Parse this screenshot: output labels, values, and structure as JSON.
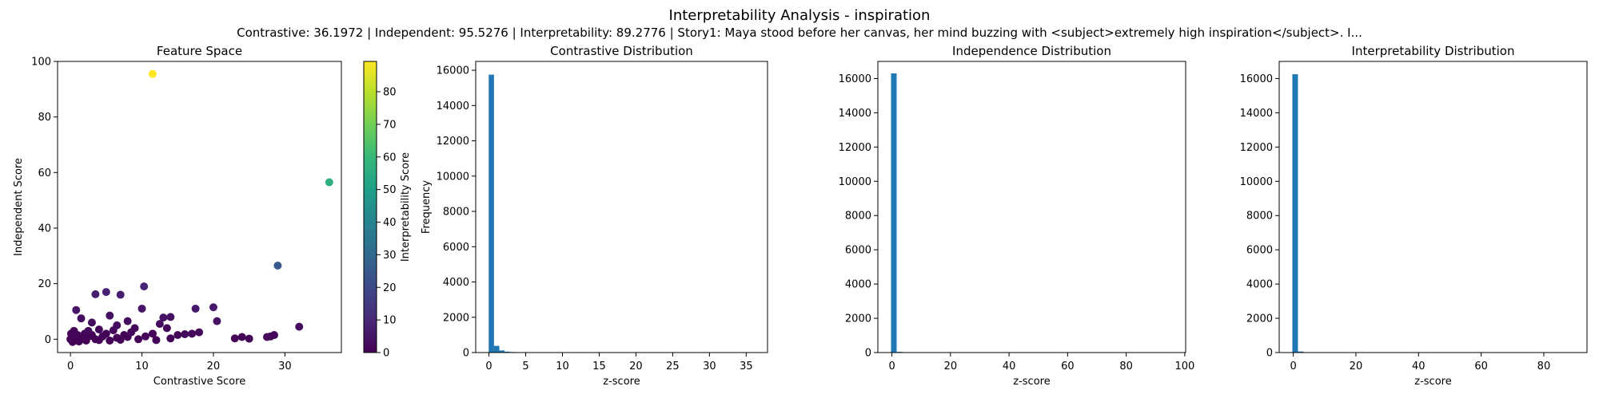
{
  "figure": {
    "title": "Interpretability Analysis - inspiration",
    "subtitle": "Contrastive: 36.1972 | Independent: 95.5276 | Interpretability: 89.2776 | Story1: Maya stood before her canvas, her mind buzzing with <subject>extremely high inspiration</subject>. I..."
  },
  "colors": {
    "bar": "#1f77b4",
    "viridis": [
      "#440154",
      "#482878",
      "#3e4989",
      "#31688e",
      "#26828e",
      "#1f9e89",
      "#35b779",
      "#6ece58",
      "#b5de2b",
      "#fde725"
    ]
  },
  "chart_data": [
    {
      "type": "scatter",
      "title": "Feature Space",
      "xlabel": "Contrastive Score",
      "ylabel": "Independent Score",
      "xlim": [
        -1.8,
        37.9
      ],
      "ylim": [
        -4.8,
        100
      ],
      "xticks": [
        0,
        10,
        20,
        30
      ],
      "yticks": [
        0,
        20,
        40,
        60,
        80,
        100
      ],
      "colorbar": {
        "label": "Interpretability Score",
        "range": [
          0,
          89.3
        ],
        "ticks": [
          0,
          10,
          20,
          30,
          40,
          50,
          60,
          70,
          80
        ]
      },
      "points": [
        {
          "x": 11.5,
          "y": 95.5,
          "c": 89.3
        },
        {
          "x": 36.2,
          "y": 56.5,
          "c": 56
        },
        {
          "x": 29.0,
          "y": 26.5,
          "c": 25
        },
        {
          "x": 10.3,
          "y": 19.0,
          "c": 9
        },
        {
          "x": 5.0,
          "y": 17.0,
          "c": 8
        },
        {
          "x": 3.5,
          "y": 16.2,
          "c": 7
        },
        {
          "x": 7.0,
          "y": 16.0,
          "c": 7
        },
        {
          "x": 20.0,
          "y": 11.5,
          "c": 6
        },
        {
          "x": 17.5,
          "y": 11.0,
          "c": 6
        },
        {
          "x": 10.0,
          "y": 11.0,
          "c": 5
        },
        {
          "x": 0.8,
          "y": 10.5,
          "c": 5
        },
        {
          "x": 20.5,
          "y": 6.5,
          "c": 4
        },
        {
          "x": 14.0,
          "y": 8.0,
          "c": 4
        },
        {
          "x": 13.0,
          "y": 7.8,
          "c": 4
        },
        {
          "x": 5.5,
          "y": 8.5,
          "c": 4
        },
        {
          "x": 1.5,
          "y": 7.5,
          "c": 3
        },
        {
          "x": 8.0,
          "y": 6.5,
          "c": 3
        },
        {
          "x": 12.5,
          "y": 5.5,
          "c": 3
        },
        {
          "x": 3.0,
          "y": 6.0,
          "c": 3
        },
        {
          "x": 6.5,
          "y": 5.0,
          "c": 3
        },
        {
          "x": 32.0,
          "y": 4.5,
          "c": 3
        },
        {
          "x": 9.0,
          "y": 4.0,
          "c": 2
        },
        {
          "x": 13.5,
          "y": 4.0,
          "c": 2
        },
        {
          "x": 4.0,
          "y": 3.5,
          "c": 2
        },
        {
          "x": 2.5,
          "y": 3.0,
          "c": 2
        },
        {
          "x": 6.0,
          "y": 3.2,
          "c": 2
        },
        {
          "x": 18.0,
          "y": 2.5,
          "c": 2
        },
        {
          "x": 17.0,
          "y": 2.0,
          "c": 2
        },
        {
          "x": 16.0,
          "y": 1.8,
          "c": 2
        },
        {
          "x": 28.5,
          "y": 1.5,
          "c": 2
        },
        {
          "x": 28.0,
          "y": 1.0,
          "c": 2
        },
        {
          "x": 27.5,
          "y": 0.8,
          "c": 2
        },
        {
          "x": 24.0,
          "y": 0.8,
          "c": 1
        },
        {
          "x": 23.0,
          "y": 0.3,
          "c": 1
        },
        {
          "x": 25.0,
          "y": 0.2,
          "c": 1
        },
        {
          "x": 11.5,
          "y": 2.0,
          "c": 1
        },
        {
          "x": 15.0,
          "y": 1.5,
          "c": 1
        },
        {
          "x": 10.5,
          "y": 1.0,
          "c": 1
        },
        {
          "x": 8.5,
          "y": 2.5,
          "c": 2
        },
        {
          "x": 7.5,
          "y": 1.5,
          "c": 1
        },
        {
          "x": 5.0,
          "y": 2.0,
          "c": 1
        },
        {
          "x": 4.5,
          "y": 1.0,
          "c": 1
        },
        {
          "x": 3.0,
          "y": 1.5,
          "c": 1
        },
        {
          "x": 2.0,
          "y": 2.0,
          "c": 1
        },
        {
          "x": 1.0,
          "y": 1.5,
          "c": 1
        },
        {
          "x": 0.5,
          "y": 3.0,
          "c": 1
        },
        {
          "x": 0.2,
          "y": 0.5,
          "c": 1
        },
        {
          "x": 0.0,
          "y": 0.0,
          "c": 0.5
        },
        {
          "x": 0.3,
          "y": -1.0,
          "c": 0.5
        },
        {
          "x": 1.2,
          "y": -0.8,
          "c": 0.5
        },
        {
          "x": 2.2,
          "y": -0.5,
          "c": 0.5
        },
        {
          "x": 3.5,
          "y": 0.0,
          "c": 0.5
        },
        {
          "x": 5.5,
          "y": -0.5,
          "c": 0.5
        },
        {
          "x": 6.5,
          "y": 0.5,
          "c": 0.5
        },
        {
          "x": 9.5,
          "y": 0.0,
          "c": 0.5
        },
        {
          "x": 12.0,
          "y": -0.3,
          "c": 0.5
        },
        {
          "x": 14.0,
          "y": 0.3,
          "c": 0.5
        },
        {
          "x": 0.8,
          "y": 1.0,
          "c": 0.5
        },
        {
          "x": 1.8,
          "y": 0.3,
          "c": 0.5
        },
        {
          "x": 2.8,
          "y": 1.2,
          "c": 0.5
        },
        {
          "x": 4.0,
          "y": -0.3,
          "c": 0.5
        },
        {
          "x": 7.0,
          "y": -0.2,
          "c": 0.5
        },
        {
          "x": 8.0,
          "y": 0.8,
          "c": 0.5
        },
        {
          "x": 0.1,
          "y": 2.0,
          "c": 0.5
        },
        {
          "x": 0.6,
          "y": -0.3,
          "c": 0.5
        }
      ]
    },
    {
      "type": "bar",
      "title": "Contrastive Distribution",
      "xlabel": "z-score",
      "ylabel": "Frequency",
      "xlim": [
        -1.8,
        37.9
      ],
      "ylim": [
        0,
        16500
      ],
      "xticks": [
        0,
        5,
        10,
        15,
        20,
        25,
        30,
        35
      ],
      "yticks": [
        0,
        2000,
        4000,
        6000,
        8000,
        10000,
        12000,
        14000,
        16000
      ],
      "bin_start": -0.03,
      "bin_width": 0.72,
      "values": [
        15750,
        380,
        120,
        50,
        30,
        20,
        12,
        8,
        6,
        4,
        3,
        3,
        2,
        2,
        2,
        1,
        1,
        1,
        1,
        1,
        1,
        0,
        1,
        0,
        1,
        0,
        0,
        0,
        0,
        0,
        0,
        0,
        0,
        0,
        0,
        0,
        0,
        0,
        0,
        0,
        0,
        0,
        0,
        0,
        0,
        0,
        0,
        0,
        0,
        1
      ]
    },
    {
      "type": "bar",
      "title": "Independence Distribution",
      "xlabel": "z-score",
      "ylabel": "",
      "xlim": [
        -4.8,
        100.3
      ],
      "ylim": [
        0,
        17000
      ],
      "xticks": [
        0,
        20,
        40,
        60,
        80,
        100
      ],
      "yticks": [
        0,
        2000,
        4000,
        6000,
        8000,
        10000,
        12000,
        14000,
        16000
      ],
      "bin_start": -0.3,
      "bin_width": 1.92,
      "values": [
        16300,
        40,
        10,
        5,
        3,
        2,
        1,
        1,
        1,
        1,
        0,
        0,
        0,
        0,
        1,
        0,
        0,
        0,
        0,
        0,
        0,
        0,
        0,
        0,
        0,
        0,
        0,
        0,
        0,
        1,
        0,
        0,
        0,
        0,
        0,
        0,
        0,
        0,
        0,
        0,
        0,
        0,
        0,
        0,
        0,
        0,
        0,
        0,
        0,
        1
      ]
    },
    {
      "type": "bar",
      "title": "Interpretability Distribution",
      "xlabel": "z-score",
      "ylabel": "",
      "xlim": [
        -4.5,
        93.8
      ],
      "ylim": [
        0,
        17000
      ],
      "xticks": [
        0,
        20,
        40,
        60,
        80
      ],
      "yticks": [
        0,
        2000,
        4000,
        6000,
        8000,
        10000,
        12000,
        14000,
        16000
      ],
      "bin_start": -0.3,
      "bin_width": 1.79,
      "values": [
        16250,
        60,
        15,
        5,
        3,
        2,
        1,
        1,
        1,
        0,
        0,
        0,
        0,
        0,
        0,
        0,
        0,
        0,
        0,
        0,
        0,
        0,
        0,
        0,
        0,
        0,
        0,
        0,
        0,
        0,
        1,
        0,
        0,
        0,
        0,
        0,
        0,
        0,
        0,
        0,
        0,
        0,
        0,
        0,
        0,
        0,
        0,
        0,
        0,
        1
      ]
    }
  ]
}
